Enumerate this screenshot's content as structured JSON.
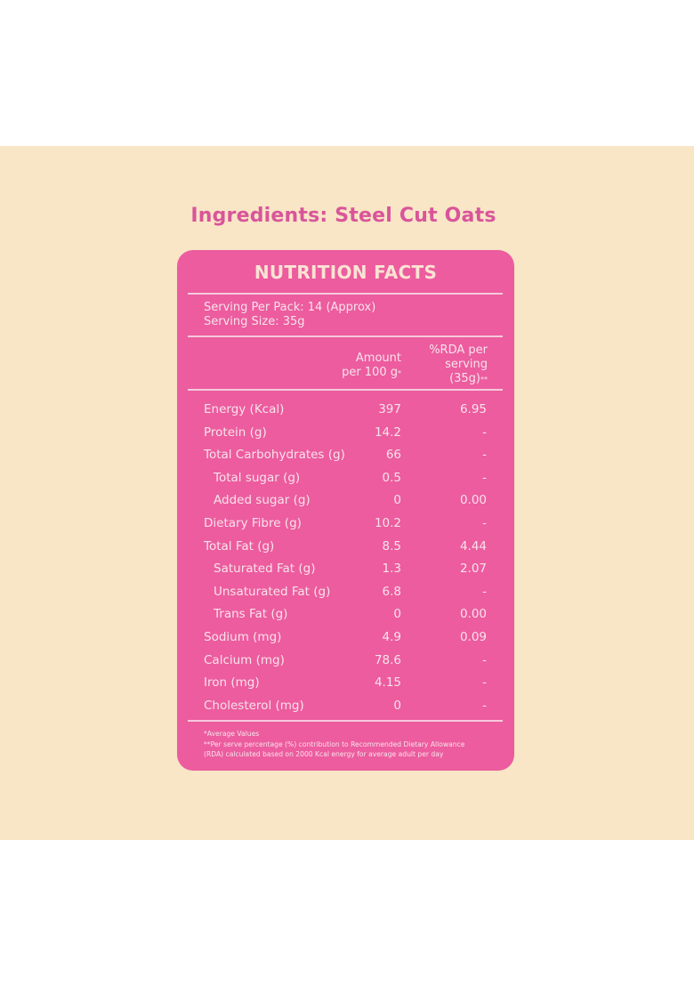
{
  "ingredients_heading": "Ingredients: Steel Cut Oats",
  "panel": {
    "title": "NUTRITION FACTS",
    "serving_per_pack": "Serving Per Pack: 14 (Approx)",
    "serving_size": "Serving Size: 35g",
    "columns": {
      "amount_line1": "Amount",
      "amount_line2": "per 100 g",
      "amount_mark": "*",
      "rda_line1": "%RDA per",
      "rda_line2": "serving",
      "rda_line3": "(35g)",
      "rda_mark": "**"
    },
    "rows": [
      {
        "label": "Energy (Kcal)",
        "amount": "397",
        "rda": "6.95",
        "indent": false
      },
      {
        "label": "Protein (g)",
        "amount": "14.2",
        "rda": "-",
        "indent": false
      },
      {
        "label": "Total Carbohydrates (g)",
        "amount": "66",
        "rda": "-",
        "indent": false
      },
      {
        "label": "Total sugar (g)",
        "amount": "0.5",
        "rda": "-",
        "indent": true
      },
      {
        "label": "Added sugar (g)",
        "amount": "0",
        "rda": "0.00",
        "indent": true
      },
      {
        "label": "Dietary Fibre (g)",
        "amount": "10.2",
        "rda": "-",
        "indent": false
      },
      {
        "label": "Total Fat (g)",
        "amount": "8.5",
        "rda": "4.44",
        "indent": false
      },
      {
        "label": "Saturated Fat (g)",
        "amount": "1.3",
        "rda": "2.07",
        "indent": true
      },
      {
        "label": "Unsaturated Fat (g)",
        "amount": "6.8",
        "rda": "-",
        "indent": true
      },
      {
        "label": "Trans Fat (g)",
        "amount": "0",
        "rda": "0.00",
        "indent": true
      },
      {
        "label": "Sodium (mg)",
        "amount": "4.9",
        "rda": "0.09",
        "indent": false
      },
      {
        "label": "Calcium (mg)",
        "amount": "78.6",
        "rda": "-",
        "indent": false
      },
      {
        "label": "Iron (mg)",
        "amount": "4.15",
        "rda": "-",
        "indent": false
      },
      {
        "label": "Cholesterol (mg)",
        "amount": "0",
        "rda": "-",
        "indent": false
      }
    ],
    "footnotes": [
      "*Average Values",
      "**Per serve percentage (%) contribution to Recommended Dietary Allowance",
      "(RDA) calculated based on 2000 Kcal energy for average adult per day"
    ]
  },
  "colors": {
    "background_band": "#f8e6c6",
    "panel": "#ec5c9f",
    "heading": "#d9559a",
    "title": "#fbe3d3",
    "text": "#f9e3ea",
    "divider": "#f6c9dc"
  }
}
